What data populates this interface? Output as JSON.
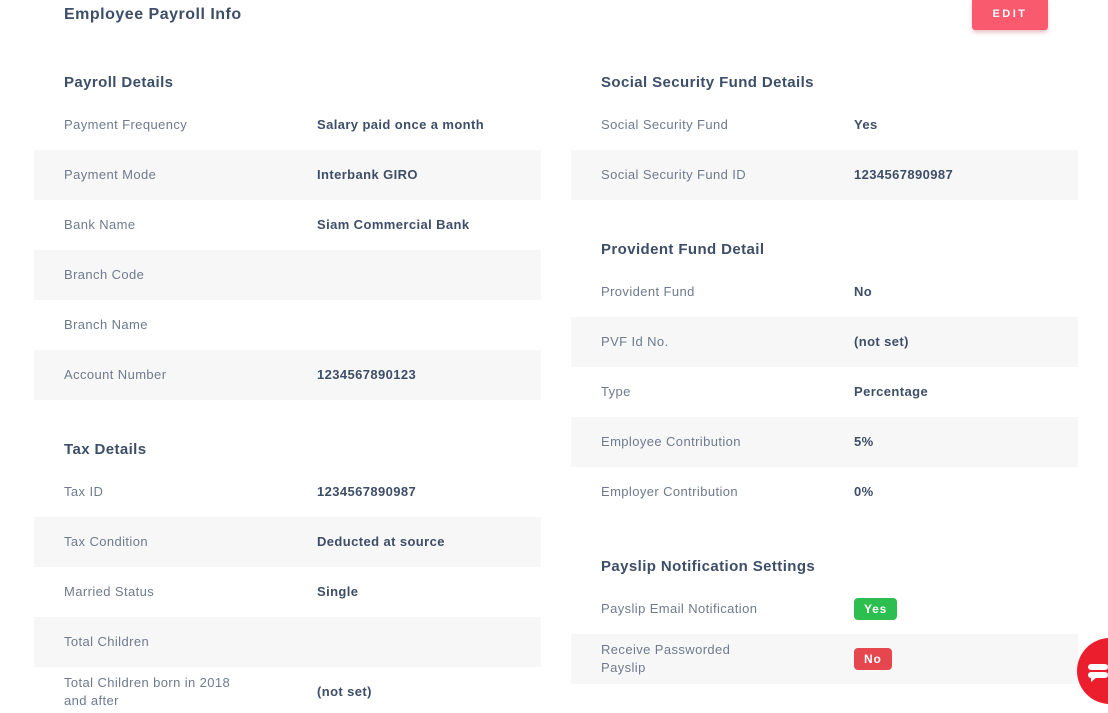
{
  "header": {
    "title": "Employee Payroll Info",
    "edit_label": "EDIT"
  },
  "colors": {
    "edit_button": "#fa5a6e",
    "badge_yes_bg": "#2cbe4e",
    "badge_no_bg": "#e6464d",
    "chat_button": "#eb1e2d",
    "heading_text": "#3d4e68",
    "label_text": "#6e7b8d",
    "row_alt_bg": "#f7f7f8"
  },
  "columns": [
    {
      "name": "left",
      "sections": [
        {
          "title": "Payroll Details",
          "rows": [
            {
              "label": "Payment Frequency",
              "value": "Salary paid once a month"
            },
            {
              "label": "Payment Mode",
              "value": "Interbank GIRO"
            },
            {
              "label": "Bank Name",
              "value": "Siam Commercial Bank"
            },
            {
              "label": "Branch Code",
              "value": ""
            },
            {
              "label": "Branch Name",
              "value": ""
            },
            {
              "label": "Account Number",
              "value": "1234567890123"
            }
          ]
        },
        {
          "title": "Tax Details",
          "rows": [
            {
              "label": "Tax ID",
              "value": "1234567890987"
            },
            {
              "label": "Tax Condition",
              "value": "Deducted at source"
            },
            {
              "label": "Married Status",
              "value": "Single"
            },
            {
              "label": "Total Children",
              "value": ""
            },
            {
              "label": "Total Children born in 2018\nand after",
              "value": "(not set)"
            }
          ]
        }
      ]
    },
    {
      "name": "right",
      "sections": [
        {
          "title": "Social Security Fund Details",
          "rows": [
            {
              "label": "Social Security Fund",
              "value": "Yes"
            },
            {
              "label": "Social Security Fund ID",
              "value": "1234567890987"
            }
          ]
        },
        {
          "title": "Provident Fund Detail",
          "rows": [
            {
              "label": "Provident Fund",
              "value": "No"
            },
            {
              "label": "PVF Id No.",
              "value": "(not set)"
            },
            {
              "label": "Type",
              "value": "Percentage"
            },
            {
              "label": "Employee Contribution",
              "value": "5%"
            },
            {
              "label": "Employer Contribution",
              "value": "0%"
            }
          ]
        },
        {
          "title": "Payslip Notification Settings",
          "rows": [
            {
              "label": "Payslip Email Notification",
              "value": "Yes",
              "badge": "green"
            },
            {
              "label": "Receive Passworded\nPayslip",
              "value": "No",
              "badge": "red"
            }
          ]
        }
      ]
    }
  ],
  "chat_widget": {
    "icon": "chat-bubble-icon"
  }
}
